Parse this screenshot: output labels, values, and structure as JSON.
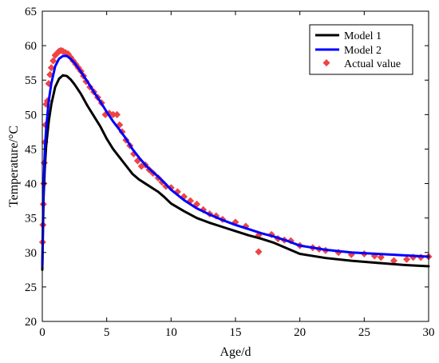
{
  "chart_data": {
    "type": "line",
    "title": "",
    "xlabel": "Age/d",
    "ylabel": "Temperature/°C",
    "xlim": [
      0,
      30
    ],
    "ylim": [
      20,
      65
    ],
    "xticks": [
      0,
      5,
      10,
      15,
      20,
      25,
      30
    ],
    "yticks": [
      20,
      25,
      30,
      35,
      40,
      45,
      50,
      55,
      60,
      65
    ],
    "grid": false,
    "legend_position": "top-right",
    "series": [
      {
        "name": "Model 1",
        "kind": "line",
        "color": "#000000",
        "x": [
          0,
          0.05,
          0.1,
          0.2,
          0.3,
          0.5,
          0.7,
          1.0,
          1.3,
          1.6,
          1.9,
          2.2,
          2.5,
          3.0,
          3.5,
          4.0,
          4.5,
          5.0,
          5.5,
          6.0,
          6.5,
          7.0,
          7.5,
          8.0,
          8.5,
          9.0,
          9.5,
          10.0,
          11,
          12,
          13,
          14,
          15,
          16,
          17,
          18,
          19,
          20,
          22,
          24,
          26,
          28,
          30
        ],
        "y": [
          27.5,
          33,
          38,
          42.5,
          45.5,
          49,
          51.5,
          54,
          55.2,
          55.7,
          55.6,
          55.1,
          54.4,
          53,
          51.3,
          49.8,
          48.3,
          46.5,
          45,
          43.8,
          42.6,
          41.4,
          40.6,
          40,
          39.4,
          38.8,
          38,
          37.1,
          36,
          35,
          34.3,
          33.7,
          33.1,
          32.5,
          32,
          31.4,
          30.6,
          29.8,
          29.2,
          28.8,
          28.5,
          28.2,
          28
        ]
      },
      {
        "name": "Model 2",
        "kind": "line",
        "color": "#0000ff",
        "x": [
          0,
          0.05,
          0.1,
          0.2,
          0.3,
          0.5,
          0.7,
          1.0,
          1.3,
          1.6,
          1.9,
          2.2,
          2.5,
          3.0,
          3.5,
          4.0,
          4.5,
          5.0,
          5.5,
          6.0,
          6.5,
          7.0,
          7.5,
          8.0,
          8.5,
          9.0,
          9.5,
          10.0,
          11,
          12,
          13,
          14,
          15,
          16,
          17,
          18,
          19,
          20,
          22,
          24,
          26,
          28,
          30
        ],
        "y": [
          28,
          34,
          39.5,
          45,
          48,
          52,
          54.5,
          57,
          58.1,
          58.5,
          58.5,
          58.1,
          57.5,
          56.2,
          54.8,
          53.3,
          51.9,
          50.4,
          49,
          47.8,
          46.5,
          45,
          43.8,
          42.7,
          41.8,
          41,
          40.1,
          39.1,
          37.6,
          36.4,
          35.5,
          34.7,
          34,
          33.4,
          32.8,
          32.3,
          31.7,
          31,
          30.4,
          30,
          29.8,
          29.6,
          29.4
        ]
      },
      {
        "name": "Actual value",
        "kind": "scatter",
        "color": "#ee4444",
        "marker": "diamond",
        "x": [
          0.02,
          0.05,
          0.08,
          0.12,
          0.15,
          0.2,
          0.25,
          0.3,
          0.4,
          0.5,
          0.6,
          0.7,
          0.85,
          1.0,
          1.15,
          1.3,
          1.45,
          1.6,
          1.8,
          2.0,
          2.2,
          2.4,
          2.6,
          2.8,
          3.0,
          3.2,
          3.4,
          3.7,
          4.0,
          4.3,
          4.6,
          4.9,
          5.2,
          5.5,
          5.8,
          6.0,
          6.2,
          6.5,
          6.8,
          7.1,
          7.4,
          7.7,
          8.0,
          8.3,
          8.6,
          9.0,
          9.3,
          9.6,
          10.0,
          10.5,
          11.0,
          11.5,
          12.0,
          12.5,
          13.0,
          13.5,
          14.0,
          15.0,
          15.8,
          16.8,
          16.8,
          17.8,
          18.3,
          18.8,
          19.3,
          20.0,
          21.0,
          21.5,
          22.0,
          23.0,
          24.0,
          25.0,
          25.8,
          26.3,
          27.3,
          28.3,
          28.8,
          29.4,
          30.0
        ],
        "y": [
          31.5,
          34,
          37,
          40,
          43,
          46,
          48.5,
          51.5,
          52,
          54.5,
          55.8,
          56.8,
          57.8,
          58.6,
          58.9,
          59.2,
          59.3,
          59.2,
          59,
          58.8,
          58.3,
          57.8,
          57.3,
          56.8,
          56.3,
          55.6,
          54.8,
          54,
          53.3,
          52.5,
          51.7,
          50,
          50.2,
          50,
          50,
          48.5,
          47.5,
          46.3,
          45.5,
          44.3,
          43.3,
          42.5,
          42.7,
          42,
          41.5,
          40.8,
          40.2,
          39.6,
          39.4,
          38.8,
          38.1,
          37.5,
          37,
          36.2,
          35.6,
          35.3,
          34.8,
          34.4,
          33.8,
          32.5,
          30.1,
          32.6,
          32,
          31.8,
          31.7,
          31,
          30.7,
          30.5,
          30.3,
          30,
          29.7,
          29.8,
          29.5,
          29.3,
          28.8,
          29,
          29.3,
          29.3,
          29.4
        ]
      }
    ]
  }
}
